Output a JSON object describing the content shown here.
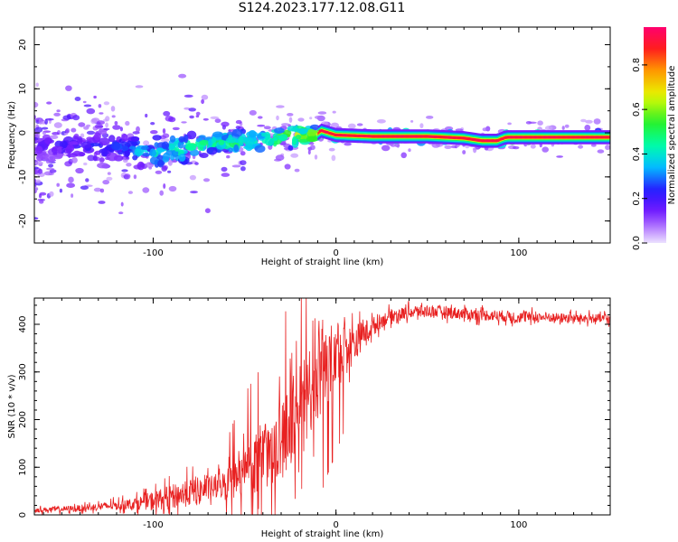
{
  "title": "S124.2023.177.12.08.G11",
  "colors": {
    "snr_line": "#e82020",
    "spectral_band_core": "#ff1a1a",
    "spectral_band_mid": "#00e0e0",
    "spectral_band_edge": "#3a00ff",
    "speckle": "#c89cff"
  },
  "chart_data": [
    {
      "type": "heatmap",
      "xlabel": "Height of straight line (km)",
      "ylabel": "Frequency (Hz)",
      "xlim": [
        -165,
        150
      ],
      "ylim": [
        -25,
        24
      ],
      "xticks": [
        -100,
        0,
        100
      ],
      "xtick_labels": [
        "-100",
        "0",
        "100"
      ],
      "yticks": [
        -20,
        -10,
        0,
        10,
        20
      ],
      "ytick_labels": [
        "-20",
        "-10",
        "0",
        "10",
        "20"
      ],
      "colorbar": {
        "label": "Normalized spectral amplitude",
        "range": [
          0.0,
          0.97
        ],
        "ticks": [
          0.0,
          0.2,
          0.4,
          0.6,
          0.8
        ],
        "tick_labels": [
          "0.0",
          "0.2",
          "0.4",
          "0.6",
          "0.8"
        ],
        "colormap": "rainbow"
      },
      "ridge": {
        "x": [
          -165,
          -140,
          -120,
          -100,
          -90,
          -80,
          -70,
          -60,
          -50,
          -40,
          -30,
          -20,
          -12,
          -8,
          0,
          20,
          50,
          70,
          80,
          88,
          93,
          110,
          130,
          150
        ],
        "y": [
          -3,
          -3,
          -3.5,
          -4.5,
          -4,
          -3,
          -2.5,
          -2,
          -2,
          -1.5,
          -0.8,
          -0.5,
          -0.8,
          0.5,
          -0.5,
          -0.8,
          -0.8,
          -1.2,
          -1.8,
          -1.8,
          -1,
          -1,
          -1,
          -1
        ],
        "amplitude": [
          0.2,
          0.25,
          0.3,
          0.45,
          0.5,
          0.55,
          0.55,
          0.55,
          0.6,
          0.6,
          0.65,
          0.7,
          0.75,
          0.9,
          0.95,
          0.95,
          0.95,
          0.85,
          0.9,
          0.9,
          0.95,
          0.95,
          0.9,
          0.9
        ]
      }
    },
    {
      "type": "line",
      "xlabel": "Height of straight line (km)",
      "ylabel": "SNR (10 * v/v)",
      "xlim": [
        -165,
        150
      ],
      "ylim": [
        0,
        455
      ],
      "xticks": [
        -100,
        0,
        100
      ],
      "xtick_labels": [
        "-100",
        "0",
        "100"
      ],
      "yticks": [
        0,
        100,
        200,
        300,
        400
      ],
      "ytick_labels": [
        "0",
        "100",
        "200",
        "300",
        "400"
      ],
      "series": [
        {
          "x": [
            -165,
            -150,
            -140,
            -130,
            -120,
            -110,
            -100,
            -90,
            -80,
            -70,
            -60,
            -50,
            -40,
            -30,
            -25,
            -20,
            -15,
            -10,
            -5,
            0,
            5,
            10,
            15,
            20,
            25,
            30,
            40,
            50,
            60,
            70,
            80,
            90,
            100,
            110,
            120,
            130,
            140,
            150
          ],
          "y": [
            10,
            12,
            14,
            17,
            20,
            24,
            30,
            38,
            48,
            55,
            65,
            90,
            120,
            155,
            190,
            225,
            255,
            280,
            305,
            325,
            345,
            360,
            380,
            395,
            408,
            418,
            425,
            428,
            426,
            422,
            420,
            418,
            415,
            415,
            414,
            413,
            412,
            412
          ],
          "noise": [
            5,
            6,
            7,
            8,
            10,
            12,
            20,
            25,
            30,
            25,
            30,
            55,
            65,
            80,
            90,
            95,
            90,
            85,
            75,
            65,
            55,
            40,
            28,
            20,
            15,
            14,
            13,
            13,
            13,
            13,
            12,
            12,
            12,
            11,
            10,
            10,
            10,
            10
          ]
        }
      ]
    }
  ]
}
